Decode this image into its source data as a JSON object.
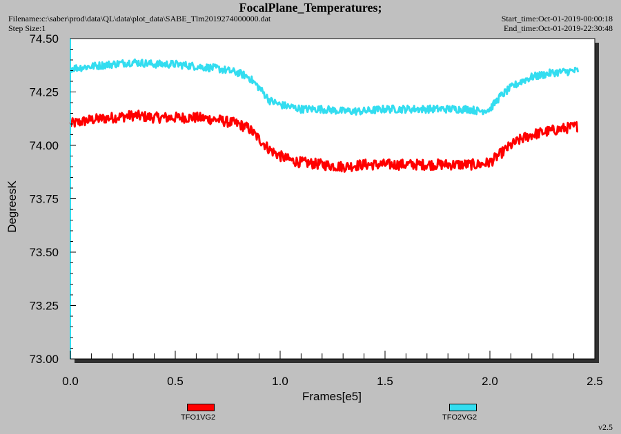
{
  "header": {
    "title": "FocalPlane_Temperatures;",
    "filename": "Filename:c:\\saber\\prod\\data\\QL\\data\\plot_data\\SABE_Tlm2019274000000.dat",
    "step_size": "Step Size:1",
    "start_time": "Start_time:Oct-01-2019-00:00:18",
    "end_time": "End_time:Oct-01-2019-22:30:48"
  },
  "version": "v2.5",
  "chart_data": {
    "type": "line",
    "title": "FocalPlane_Temperatures;",
    "xlabel": "Frames[e5]",
    "ylabel": "DegreesK",
    "xlim": [
      0.0,
      2.5
    ],
    "ylim": [
      73.0,
      74.5
    ],
    "x_ticks": [
      "0.0",
      "0.5",
      "1.0",
      "1.5",
      "2.0",
      "2.5"
    ],
    "y_ticks": [
      "73.00",
      "73.25",
      "73.50",
      "73.75",
      "74.00",
      "74.25",
      "74.50"
    ],
    "grid": false,
    "legend_position": "bottom",
    "series": [
      {
        "name": "TFO1VG2",
        "color": "#ff0000",
        "noise": 0.025,
        "x": [
          0.0,
          0.1,
          0.2,
          0.3,
          0.4,
          0.5,
          0.6,
          0.7,
          0.8,
          0.85,
          0.9,
          0.95,
          1.0,
          1.05,
          1.1,
          1.2,
          1.3,
          1.4,
          1.5,
          1.6,
          1.7,
          1.8,
          1.9,
          1.95,
          2.0,
          2.05,
          2.1,
          2.15,
          2.2,
          2.3,
          2.42
        ],
        "y": [
          74.1,
          74.12,
          74.13,
          74.14,
          74.13,
          74.13,
          74.13,
          74.12,
          74.1,
          74.08,
          74.03,
          73.98,
          73.95,
          73.93,
          73.92,
          73.91,
          73.9,
          73.91,
          73.91,
          73.91,
          73.91,
          73.91,
          73.91,
          73.91,
          73.92,
          73.96,
          74.0,
          74.03,
          74.05,
          74.07,
          74.09
        ]
      },
      {
        "name": "TFO2VG2",
        "color": "#33ddf0",
        "noise": 0.018,
        "x": [
          0.0,
          0.1,
          0.2,
          0.3,
          0.4,
          0.5,
          0.6,
          0.7,
          0.8,
          0.85,
          0.9,
          0.95,
          1.0,
          1.05,
          1.1,
          1.2,
          1.3,
          1.4,
          1.5,
          1.6,
          1.7,
          1.8,
          1.9,
          1.95,
          2.0,
          2.05,
          2.1,
          2.15,
          2.2,
          2.3,
          2.42
        ],
        "y": [
          74.36,
          74.37,
          74.38,
          74.39,
          74.38,
          74.38,
          74.37,
          74.36,
          74.34,
          74.32,
          74.27,
          74.21,
          74.19,
          74.18,
          74.17,
          74.17,
          74.16,
          74.16,
          74.17,
          74.17,
          74.17,
          74.17,
          74.17,
          74.16,
          74.17,
          74.23,
          74.27,
          74.3,
          74.32,
          74.34,
          74.35
        ]
      }
    ]
  }
}
